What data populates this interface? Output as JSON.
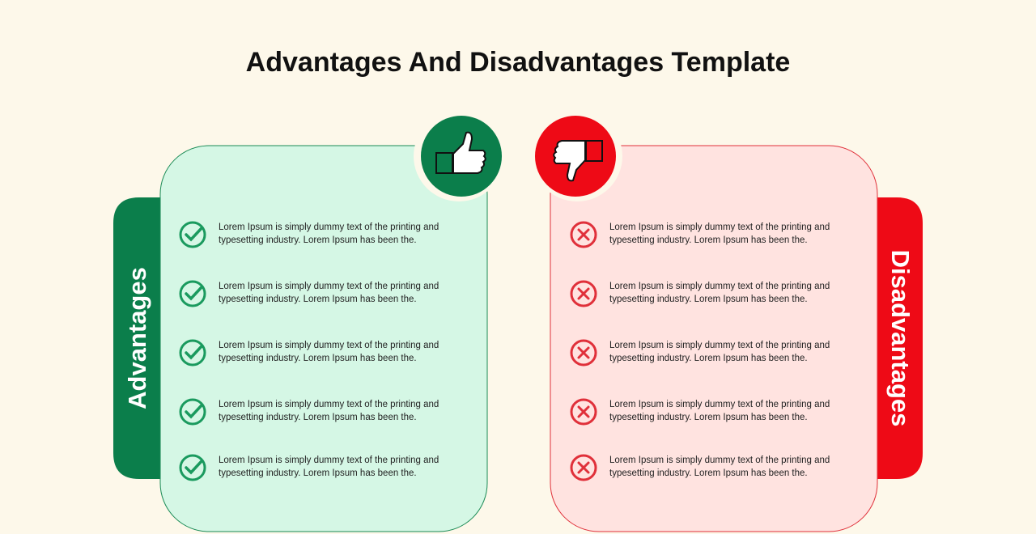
{
  "header": {
    "title": "Advantages And Disadvantages Template"
  },
  "advantages": {
    "label": "Advantages",
    "items": [
      "Lorem Ipsum is simply dummy text of the printing and typesetting industry. Lorem Ipsum has been the.",
      "Lorem Ipsum is simply dummy text of the printing and typesetting industry. Lorem Ipsum has been the.",
      "Lorem Ipsum is simply dummy text of the printing and typesetting industry. Lorem Ipsum has been the.",
      "Lorem Ipsum is simply dummy text of the printing and typesetting industry. Lorem Ipsum has been the.",
      "Lorem Ipsum is simply dummy text of the printing and typesetting industry. Lorem Ipsum has been the."
    ]
  },
  "disadvantages": {
    "label": "Disadvantages",
    "items": [
      "Lorem Ipsum is simply dummy text of the printing and typesetting industry. Lorem Ipsum has been the.",
      "Lorem Ipsum is simply dummy text of the printing and typesetting industry. Lorem Ipsum has been the.",
      "Lorem Ipsum is simply dummy text of the printing and typesetting industry. Lorem Ipsum has been the.",
      "Lorem Ipsum is simply dummy text of the printing and typesetting industry. Lorem Ipsum has been the.",
      "Lorem Ipsum is simply dummy text of the printing and typesetting industry. Lorem Ipsum has been the."
    ]
  }
}
